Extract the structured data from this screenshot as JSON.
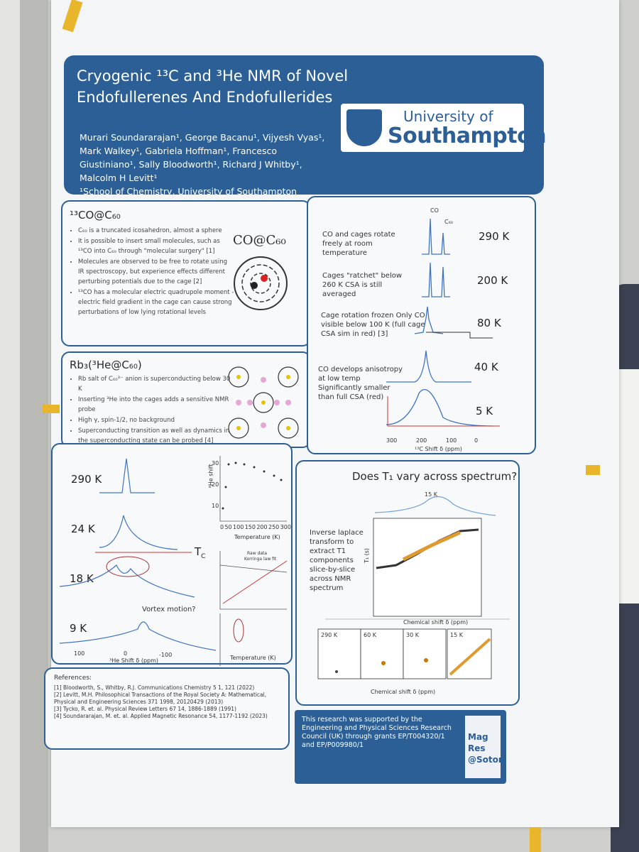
{
  "header": {
    "title": "Cryogenic ¹³C and ³He NMR of Novel Endofullerenes And Endofullerides",
    "authors": "Murari Soundararajan¹, George Bacanu¹, Vijyesh Vyas¹, Mark Walkey¹, Gabriela Hoffman¹, Francesco Giustiniano¹, Sally Bloodworth¹, Richard J Whitby¹, Malcolm H Levitt¹",
    "affiliation": "¹School of Chemistry, University of Southampton",
    "logo_line1": "University of",
    "logo_line2": "Southampton"
  },
  "panel_co": {
    "heading": "¹³CO@C₆₀",
    "bullets": [
      "C₆₀ is a truncated icosahedron, almost a sphere",
      "It is possible to insert small molecules, such as ¹³CO into C₆₀ through \"molecular surgery\" [1]",
      "Molecules are observed to be free to rotate using IR spectroscopy, but experience effects different perturbing potentials due to the cage [2]",
      "¹³CO has a molecular electric quadrupole moment - electric field gradient in the cage can cause strong perturbations of low lying rotational levels"
    ],
    "figure_label": "CO@C₆₀"
  },
  "panel_rb": {
    "heading": "Rb₃(³He@C₆₀)",
    "bullets": [
      "Rb salt of C₆₀³⁻ anion is superconducting below 30 K",
      "Inserting ³He into the cages adds a sensitive NMR probe",
      "High γ, spin-1/2, no background",
      "Superconducting transition as well as dynamics in the superconducting state can be probed [4]"
    ]
  },
  "panel_spectra": {
    "peak_labels": [
      "CO",
      "C₆₀"
    ],
    "rows": [
      {
        "caption": "CO and cages rotate freely at room temperature",
        "temp": "290 K"
      },
      {
        "caption": "Cages \"ratchet\" below 260 K CSA is still averaged",
        "temp": "200 K"
      },
      {
        "caption": "Cage rotation frozen Only CO visible below 100 K (full cage CSA sim in red) [3]",
        "temp": "80 K"
      },
      {
        "caption": "CO develops anisotropy at low temp Significantly smaller than full CSA (red)",
        "temp": "40 K"
      },
      {
        "temp": "5 K"
      }
    ],
    "x_ticks": [
      "300",
      "200",
      "100",
      "0"
    ],
    "x_label": "¹³C Shift δ (ppm)"
  },
  "panel_he": {
    "temps": [
      "290 K",
      "24 K",
      "18 K",
      "9 K"
    ],
    "tc": {
      "main": "T",
      "sub": "C"
    },
    "annotation": "Vortex motion?",
    "x_ticks": [
      "100",
      "0",
      "-100"
    ],
    "x_label": "³He Shift δ (ppm)",
    "shift_y_label": "³He shift",
    "shift_y_ticks": [
      "30",
      "20",
      "10"
    ],
    "temp_ticks": [
      "0",
      "50",
      "100",
      "150",
      "200",
      "250",
      "300"
    ],
    "temp_label": "Temperature (K)",
    "legend": [
      "Raw data",
      "Korringa law fit"
    ],
    "temp_label_2": "Temperature (K)"
  },
  "panel_t1": {
    "title": "Does T₁ vary across spectrum?",
    "text": "Inverse laplace transform to extract T1 components slice-by-slice across NMR spectrum",
    "top_label": "15 K",
    "x_label": "Chemical shift δ (ppm)",
    "y_label": "T₁ (s)",
    "small_labels": [
      "290 K",
      "60 K",
      "30 K",
      "15 K"
    ],
    "x_label_2": "Chemical shift δ (ppm)"
  },
  "references": {
    "heading": "References:",
    "items": [
      "[1] Bloodworth, S., Whitby, R.J. Communications Chemistry 5 1, 121 (2022)",
      "[2] Levitt, M.H. Philosophical Transactions of the Royal Society A: Mathematical, Physical and Engineering Sciences 371 1998, 20120429 (2013)",
      "[3] Tycko, R. et. al. Physical Review Letters 67 14, 1886-1889 (1991)",
      "[4] Soundararajan, M. et. al. Applied Magnetic Resonance 54, 1177-1192 (2023)"
    ]
  },
  "funding": {
    "text": "This research was supported by the Engineering and Physical Sciences Research Council (UK) through grants EP/T004320/1 and EP/P009980/1",
    "logo_lines": [
      "Mag",
      "Res",
      "@Soton"
    ]
  }
}
